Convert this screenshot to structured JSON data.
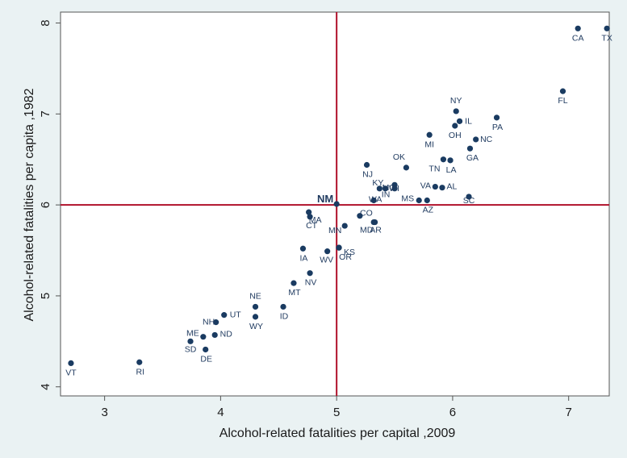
{
  "chart_data": {
    "type": "scatter",
    "title": "",
    "xlabel": "Alcohol-related fatalities per capital ,2009",
    "ylabel": "Alcohol-related fatalities per capita ,1982",
    "xlim": [
      2.62,
      7.35
    ],
    "ylim": [
      3.9,
      8.12
    ],
    "xticks": [
      3,
      4,
      5,
      6,
      7
    ],
    "yticks": [
      4,
      5,
      6,
      7,
      8
    ],
    "reference_lines": {
      "x": 5,
      "y": 6
    },
    "grid": false,
    "colors": {
      "marker": "#1a3b61",
      "ref_line": "#b0102a",
      "plot_bg": "#ffffff",
      "page_bg": "#eaf2f3"
    },
    "points": [
      {
        "label": "CA",
        "x": 7.08,
        "y": 7.94
      },
      {
        "label": "TX",
        "x": 7.33,
        "y": 7.94
      },
      {
        "label": "FL",
        "x": 6.95,
        "y": 7.25
      },
      {
        "label": "NY",
        "x": 6.03,
        "y": 7.03
      },
      {
        "label": "IL",
        "x": 6.06,
        "y": 6.92
      },
      {
        "label": "PA",
        "x": 6.38,
        "y": 6.96
      },
      {
        "label": "OH",
        "x": 6.02,
        "y": 6.87
      },
      {
        "label": "MI",
        "x": 5.8,
        "y": 6.77
      },
      {
        "label": "NC",
        "x": 6.2,
        "y": 6.72
      },
      {
        "label": "GA",
        "x": 6.15,
        "y": 6.62
      },
      {
        "label": "TN",
        "x": 5.92,
        "y": 6.5
      },
      {
        "label": "LA",
        "x": 5.98,
        "y": 6.49
      },
      {
        "label": "OK",
        "x": 5.6,
        "y": 6.41
      },
      {
        "label": "NJ",
        "x": 5.26,
        "y": 6.44
      },
      {
        "label": "IN",
        "x": 5.5,
        "y": 6.22
      },
      {
        "label": "KY",
        "x": 5.37,
        "y": 6.18
      },
      {
        "label": "WI",
        "x": 5.42,
        "y": 6.18
      },
      {
        "label": "VA",
        "x": 5.85,
        "y": 6.2
      },
      {
        "label": "AL",
        "x": 5.91,
        "y": 6.19
      },
      {
        "label": "WA",
        "x": 5.32,
        "y": 6.05
      },
      {
        "label": "MS",
        "x": 5.71,
        "y": 6.05
      },
      {
        "label": "AZ",
        "x": 5.78,
        "y": 6.05
      },
      {
        "label": "MO",
        "x": 5.5,
        "y": 6.18
      },
      {
        "label": "SC",
        "x": 6.14,
        "y": 6.09
      },
      {
        "label": "NM",
        "x": 5.0,
        "y": 6.01
      },
      {
        "label": "MA",
        "x": 4.76,
        "y": 5.92
      },
      {
        "label": "CT",
        "x": 4.77,
        "y": 5.87
      },
      {
        "label": "CO",
        "x": 5.2,
        "y": 5.88
      },
      {
        "label": "MN",
        "x": 5.07,
        "y": 5.77
      },
      {
        "label": "MD",
        "x": 5.32,
        "y": 5.81
      },
      {
        "label": "AR",
        "x": 5.33,
        "y": 5.81
      },
      {
        "label": "OR",
        "x": 5.02,
        "y": 5.53
      },
      {
        "label": "IA",
        "x": 4.71,
        "y": 5.52
      },
      {
        "label": "WV",
        "x": 4.92,
        "y": 5.49
      },
      {
        "label": "KS",
        "x": 5.02,
        "y": 5.53
      },
      {
        "label": "NV",
        "x": 4.77,
        "y": 5.25
      },
      {
        "label": "MT",
        "x": 4.63,
        "y": 5.14
      },
      {
        "label": "NE",
        "x": 4.3,
        "y": 4.88
      },
      {
        "label": "ID",
        "x": 4.54,
        "y": 4.88
      },
      {
        "label": "UT",
        "x": 4.03,
        "y": 4.79
      },
      {
        "label": "WY",
        "x": 4.3,
        "y": 4.77
      },
      {
        "label": "NH",
        "x": 3.96,
        "y": 4.71
      },
      {
        "label": "ME",
        "x": 3.85,
        "y": 4.55
      },
      {
        "label": "ND",
        "x": 3.95,
        "y": 4.57
      },
      {
        "label": "SD",
        "x": 3.74,
        "y": 4.5
      },
      {
        "label": "DE",
        "x": 3.87,
        "y": 4.41
      },
      {
        "label": "VT",
        "x": 2.71,
        "y": 4.26
      },
      {
        "label": "RI",
        "x": 3.3,
        "y": 4.27
      }
    ]
  }
}
